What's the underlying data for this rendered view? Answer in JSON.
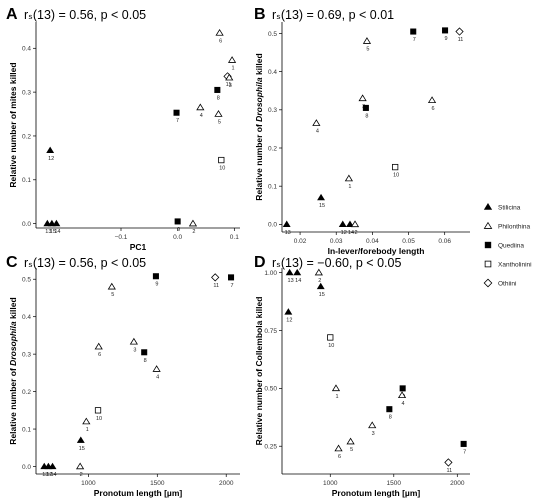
{
  "legend": {
    "items": [
      {
        "name": "Stilicina",
        "shape": "tri-filled"
      },
      {
        "name": "Philonthina",
        "shape": "tri-open"
      },
      {
        "name": "Quediina",
        "shape": "sq-filled"
      },
      {
        "name": "Xantholinini",
        "shape": "sq-open"
      },
      {
        "name": "Othiini",
        "shape": "dia-open"
      }
    ]
  },
  "chart_data": [
    {
      "panel": "A",
      "type": "scatter",
      "title": "rₛ(13) = 0.56, p < 0.05",
      "xlabel": "PC1",
      "ylabel": "Relative number of mites killed",
      "xlim": [
        -0.25,
        0.11
      ],
      "ylim": [
        -0.01,
        0.46
      ],
      "xticks": [
        -0.1,
        0.0,
        0.1
      ],
      "xticklabels": [
        "−0.1",
        "0.0",
        "0.1"
      ],
      "yticks": [
        0.0,
        0.1,
        0.2,
        0.3,
        0.4
      ],
      "yticklabels": [
        "0.0",
        "0.1",
        "0.2",
        "0.3",
        "0.4"
      ],
      "points": [
        {
          "label": "12",
          "x": -0.225,
          "y": 0.167,
          "shape": "tri-filled"
        },
        {
          "label": "13",
          "x": -0.23,
          "y": 0.0,
          "shape": "tri-filled"
        },
        {
          "label": "15",
          "x": -0.222,
          "y": 0.0,
          "shape": "tri-filled"
        },
        {
          "label": "14",
          "x": -0.214,
          "y": 0.0,
          "shape": "tri-filled"
        },
        {
          "label": "9",
          "x": 0.0,
          "y": 0.005,
          "shape": "sq-filled"
        },
        {
          "label": "2",
          "x": 0.027,
          "y": 0.0,
          "shape": "tri-open"
        },
        {
          "label": "7",
          "x": -0.002,
          "y": 0.253,
          "shape": "sq-filled"
        },
        {
          "label": "4",
          "x": 0.04,
          "y": 0.265,
          "shape": "tri-open"
        },
        {
          "label": "5",
          "x": 0.072,
          "y": 0.25,
          "shape": "tri-open"
        },
        {
          "label": "8",
          "x": 0.07,
          "y": 0.305,
          "shape": "sq-filled"
        },
        {
          "label": "10",
          "x": 0.077,
          "y": 0.145,
          "shape": "sq-open"
        },
        {
          "label": "6",
          "x": 0.074,
          "y": 0.435,
          "shape": "tri-open"
        },
        {
          "label": "1",
          "x": 0.096,
          "y": 0.373,
          "shape": "tri-open"
        },
        {
          "label": "11",
          "x": 0.088,
          "y": 0.336,
          "shape": "dia-open"
        },
        {
          "label": "3",
          "x": 0.091,
          "y": 0.333,
          "shape": "tri-open"
        }
      ]
    },
    {
      "panel": "B",
      "type": "scatter",
      "title": "rₛ(13) = 0.69, p < 0.01",
      "xlabel": "In-lever/forebody length",
      "ylabel": "Relative number of Drosophila killed",
      "xlim": [
        0.015,
        0.067
      ],
      "ylim": [
        -0.02,
        0.53
      ],
      "xticks": [
        0.02,
        0.03,
        0.04,
        0.05,
        0.06
      ],
      "xticklabels": [
        "0.02",
        "0.03",
        "0.04",
        "0.05",
        "0.06"
      ],
      "yticks": [
        0.0,
        0.1,
        0.2,
        0.3,
        0.4,
        0.5
      ],
      "yticklabels": [
        "0.0",
        "0.1",
        "0.2",
        "0.3",
        "0.4",
        "0.5"
      ],
      "points": [
        {
          "label": "13",
          "x": 0.0163,
          "y": 0.0,
          "shape": "tri-filled"
        },
        {
          "label": "15",
          "x": 0.0258,
          "y": 0.07,
          "shape": "tri-filled"
        },
        {
          "label": "12",
          "x": 0.0318,
          "y": 0.0,
          "shape": "tri-filled"
        },
        {
          "label": "14",
          "x": 0.0338,
          "y": 0.0,
          "shape": "tri-filled"
        },
        {
          "label": "2",
          "x": 0.0352,
          "y": 0.0,
          "shape": "tri-open"
        },
        {
          "label": "1",
          "x": 0.0335,
          "y": 0.12,
          "shape": "tri-open"
        },
        {
          "label": "4",
          "x": 0.0245,
          "y": 0.265,
          "shape": "tri-open"
        },
        {
          "label": "3",
          "x": 0.0373,
          "y": 0.33,
          "shape": "tri-open"
        },
        {
          "label": "8",
          "x": 0.0382,
          "y": 0.305,
          "shape": "sq-filled"
        },
        {
          "label": "5",
          "x": 0.0385,
          "y": 0.48,
          "shape": "tri-open"
        },
        {
          "label": "10",
          "x": 0.0463,
          "y": 0.15,
          "shape": "sq-open"
        },
        {
          "label": "7",
          "x": 0.0513,
          "y": 0.505,
          "shape": "sq-filled"
        },
        {
          "label": "6",
          "x": 0.0565,
          "y": 0.325,
          "shape": "tri-open"
        },
        {
          "label": "9",
          "x": 0.0601,
          "y": 0.508,
          "shape": "sq-filled"
        },
        {
          "label": "11",
          "x": 0.0641,
          "y": 0.505,
          "shape": "dia-open"
        }
      ]
    },
    {
      "panel": "C",
      "type": "scatter",
      "title": "rₛ(13) = 0.56, p < 0.05",
      "xlabel": "Pronotum length [µm]",
      "ylabel": "Relative number of Drosophila killed",
      "xlim": [
        620,
        2100
      ],
      "ylim": [
        -0.02,
        0.53
      ],
      "xticks": [
        1000,
        1500,
        2000
      ],
      "xticklabels": [
        "1000",
        "1500",
        "2000"
      ],
      "yticks": [
        0.0,
        0.1,
        0.2,
        0.3,
        0.4,
        0.5
      ],
      "yticklabels": [
        "0.0",
        "0.1",
        "0.2",
        "0.3",
        "0.4",
        "0.5"
      ],
      "points": [
        {
          "label": "13",
          "x": 680,
          "y": 0.0,
          "shape": "tri-filled"
        },
        {
          "label": "12",
          "x": 710,
          "y": 0.0,
          "shape": "tri-filled"
        },
        {
          "label": "14",
          "x": 740,
          "y": 0.0,
          "shape": "tri-filled"
        },
        {
          "label": "2",
          "x": 940,
          "y": 0.0,
          "shape": "tri-open"
        },
        {
          "label": "15",
          "x": 945,
          "y": 0.07,
          "shape": "tri-filled"
        },
        {
          "label": "1",
          "x": 985,
          "y": 0.12,
          "shape": "tri-open"
        },
        {
          "label": "10",
          "x": 1070,
          "y": 0.15,
          "shape": "sq-open"
        },
        {
          "label": "6",
          "x": 1075,
          "y": 0.32,
          "shape": "tri-open"
        },
        {
          "label": "5",
          "x": 1170,
          "y": 0.48,
          "shape": "tri-open"
        },
        {
          "label": "3",
          "x": 1330,
          "y": 0.333,
          "shape": "tri-open"
        },
        {
          "label": "8",
          "x": 1405,
          "y": 0.305,
          "shape": "sq-filled"
        },
        {
          "label": "4",
          "x": 1495,
          "y": 0.26,
          "shape": "tri-open"
        },
        {
          "label": "9",
          "x": 1490,
          "y": 0.508,
          "shape": "sq-filled"
        },
        {
          "label": "11",
          "x": 1920,
          "y": 0.505,
          "shape": "dia-open"
        },
        {
          "label": "7",
          "x": 2035,
          "y": 0.505,
          "shape": "sq-filled"
        }
      ]
    },
    {
      "panel": "D",
      "type": "scatter",
      "title": "rₛ(13) = −0.60, p < 0.05",
      "xlabel": "Pronotum length [µm]",
      "ylabel": "Relative number of Collembola killed",
      "xlim": [
        620,
        2100
      ],
      "ylim": [
        0.13,
        1.02
      ],
      "xticks": [
        1000,
        1500,
        2000
      ],
      "xticklabels": [
        "1000",
        "1500",
        "2000"
      ],
      "yticks": [
        0.25,
        0.5,
        0.75,
        1.0
      ],
      "yticklabels": [
        "0.25",
        "0.50",
        "0.75",
        "1.00"
      ],
      "points": [
        {
          "label": "13",
          "x": 680,
          "y": 1.0,
          "shape": "tri-filled"
        },
        {
          "label": "14",
          "x": 740,
          "y": 1.0,
          "shape": "tri-filled"
        },
        {
          "label": "2",
          "x": 910,
          "y": 1.0,
          "shape": "tri-open"
        },
        {
          "label": "15",
          "x": 925,
          "y": 0.94,
          "shape": "tri-filled"
        },
        {
          "label": "12",
          "x": 670,
          "y": 0.83,
          "shape": "tri-filled"
        },
        {
          "label": "10",
          "x": 1000,
          "y": 0.72,
          "shape": "sq-open"
        },
        {
          "label": "1",
          "x": 1045,
          "y": 0.5,
          "shape": "tri-open"
        },
        {
          "label": "5",
          "x": 1160,
          "y": 0.27,
          "shape": "tri-open"
        },
        {
          "label": "6",
          "x": 1065,
          "y": 0.24,
          "shape": "tri-open"
        },
        {
          "label": "3",
          "x": 1330,
          "y": 0.34,
          "shape": "tri-open"
        },
        {
          "label": "8",
          "x": 1465,
          "y": 0.41,
          "shape": "sq-filled"
        },
        {
          "label": "9",
          "x": 1570,
          "y": 0.5,
          "shape": "sq-filled"
        },
        {
          "label": "4",
          "x": 1565,
          "y": 0.47,
          "shape": "tri-open"
        },
        {
          "label": "11",
          "x": 1930,
          "y": 0.18,
          "shape": "dia-open"
        },
        {
          "label": "7",
          "x": 2050,
          "y": 0.26,
          "shape": "sq-filled"
        }
      ]
    }
  ]
}
